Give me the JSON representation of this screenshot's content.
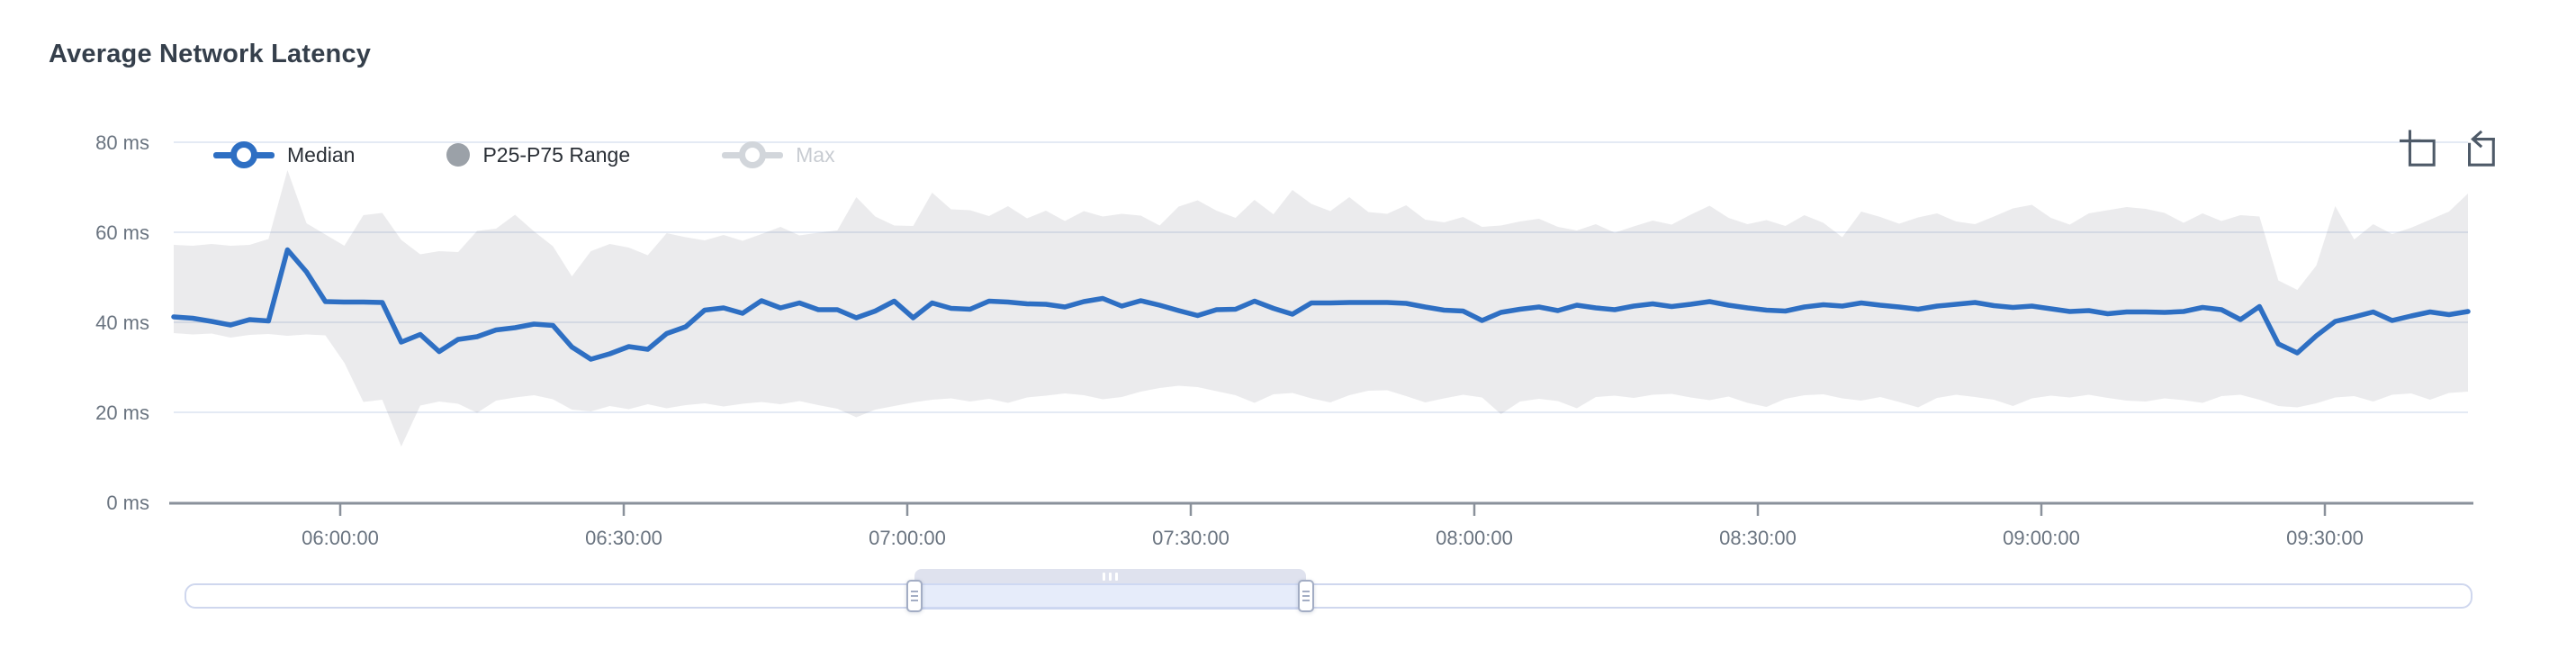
{
  "page": {
    "title": "Average Network Latency"
  },
  "legend": {
    "items": [
      {
        "label": "Median",
        "marker": "line-circle",
        "selected": true,
        "color": "#2e6fc3"
      },
      {
        "label": "P25-P75 Range",
        "marker": "filled-circle",
        "selected": true,
        "color": "#9ba1a8"
      },
      {
        "label": "Max",
        "marker": "line-circle",
        "selected": false,
        "color": "#d2d6db"
      }
    ]
  },
  "toolbox": {
    "icons": [
      {
        "name": "zoom-select"
      },
      {
        "name": "zoom-reset"
      }
    ]
  },
  "colors": {
    "median_line": "#2e6fc3",
    "band_fill": "rgba(128,133,141,0.16)",
    "grid_line": "#e4eaf4",
    "axis_line": "#8a919b",
    "axis_label": "#6a7480",
    "title": "#353f4b",
    "disabled_legend": "#d2d6db",
    "slider_window": "rgba(205,217,246,0.50)"
  },
  "slider": {
    "window_start_pct": 31.9,
    "window_end_pct": 49.0
  },
  "chart_data": {
    "type": "line",
    "title": "Average Network Latency",
    "xlabel": "",
    "ylabel": "",
    "ylim": [
      0,
      80
    ],
    "grid": true,
    "legend_position": "top-left",
    "x_start": "05:42:00",
    "x_end": "09:44:00",
    "x_interval_seconds": 120,
    "x_tick_labels": [
      "06:00:00",
      "06:30:00",
      "07:00:00",
      "07:30:00",
      "08:00:00",
      "08:30:00",
      "09:00:00",
      "09:30:00"
    ],
    "y_tick_labels": [
      "80 ms",
      "60 ms",
      "40 ms",
      "20 ms",
      "0 ms"
    ],
    "y_unit": "ms",
    "series": [
      {
        "name": "Median",
        "type": "line",
        "values": [
          41.2,
          40.9,
          40.2,
          39.4,
          40.6,
          40.3,
          56.1,
          51.2,
          44.6,
          44.5,
          44.5,
          44.4,
          35.6,
          37.3,
          33.5,
          36.2,
          36.8,
          38.3,
          38.8,
          39.6,
          39.3,
          34.5,
          31.8,
          33.0,
          34.6,
          34.0,
          37.5,
          39.0,
          42.7,
          43.2,
          42.0,
          44.8,
          43.2,
          44.3,
          42.8,
          42.8,
          41.0,
          42.5,
          44.7,
          41.0,
          44.3,
          43.1,
          42.9,
          44.7,
          44.5,
          44.1,
          44.0,
          43.4,
          44.6,
          45.3,
          43.6,
          44.8,
          43.8,
          42.6,
          41.5,
          42.8,
          42.9,
          44.7,
          43.1,
          41.8,
          44.3,
          44.3,
          44.4,
          44.4,
          44.4,
          44.2,
          43.4,
          42.7,
          42.5,
          40.4,
          42.2,
          42.9,
          43.4,
          42.6,
          43.8,
          43.2,
          42.8,
          43.6,
          44.1,
          43.5,
          44.0,
          44.6,
          43.8,
          43.2,
          42.7,
          42.5,
          43.4,
          43.9,
          43.6,
          44.3,
          43.8,
          43.4,
          42.9,
          43.6,
          44.0,
          44.4,
          43.7,
          43.3,
          43.6,
          43.0,
          42.4,
          42.6,
          41.9,
          42.3,
          42.3,
          42.2,
          42.4,
          43.3,
          42.8,
          40.6,
          43.5,
          35.2,
          33.2,
          37.0,
          40.2,
          41.2,
          42.3,
          40.4,
          41.4,
          42.3,
          41.7,
          42.4
        ]
      },
      {
        "name": "P25",
        "type": "band-lower",
        "values": [
          37.6,
          37.3,
          37.5,
          36.6,
          37.2,
          37.4,
          37.0,
          37.3,
          37.1,
          31.0,
          22.3,
          22.8,
          12.4,
          21.5,
          22.4,
          21.9,
          19.9,
          22.6,
          23.3,
          23.8,
          22.9,
          20.6,
          20.2,
          21.4,
          20.7,
          21.8,
          20.9,
          21.6,
          22.0,
          21.3,
          21.9,
          22.3,
          21.8,
          22.5,
          21.6,
          20.8,
          18.9,
          20.6,
          21.4,
          22.2,
          22.8,
          23.1,
          22.4,
          23.0,
          22.1,
          23.3,
          23.7,
          24.2,
          23.8,
          22.9,
          23.4,
          24.6,
          25.4,
          25.9,
          25.6,
          24.7,
          23.8,
          22.1,
          24.0,
          24.3,
          23.1,
          22.2,
          23.8,
          24.8,
          24.9,
          23.6,
          22.2,
          23.1,
          23.9,
          23.3,
          19.6,
          22.4,
          23.0,
          22.5,
          20.9,
          23.4,
          23.7,
          23.2,
          23.9,
          24.1,
          23.3,
          22.7,
          23.5,
          22.1,
          21.2,
          23.0,
          23.8,
          24.0,
          23.1,
          22.6,
          23.4,
          22.3,
          21.1,
          23.2,
          23.9,
          23.4,
          22.8,
          21.4,
          23.1,
          23.7,
          23.3,
          23.9,
          23.2,
          22.6,
          22.4,
          23.1,
          22.7,
          22.1,
          23.6,
          23.9,
          22.8,
          21.4,
          21.1,
          22.0,
          23.3,
          23.6,
          22.4,
          23.9,
          24.2,
          22.8,
          24.3,
          24.6
        ]
      },
      {
        "name": "P75",
        "type": "band-upper",
        "values": [
          57.2,
          57.0,
          57.4,
          57.0,
          57.2,
          58.5,
          73.8,
          62.0,
          59.5,
          57.0,
          63.8,
          64.3,
          58.3,
          55.1,
          55.8,
          55.6,
          60.3,
          60.8,
          63.9,
          60.2,
          56.9,
          50.2,
          55.8,
          57.4,
          56.6,
          54.9,
          59.8,
          58.9,
          58.2,
          59.4,
          58.1,
          59.6,
          61.2,
          59.3,
          59.9,
          60.4,
          67.8,
          63.5,
          61.5,
          61.4,
          68.8,
          65.1,
          64.9,
          63.6,
          65.8,
          63.1,
          64.8,
          62.5,
          64.7,
          63.5,
          64.1,
          63.7,
          61.5,
          65.7,
          67.1,
          64.8,
          63.2,
          67.2,
          64.0,
          69.4,
          66.3,
          64.7,
          67.8,
          64.5,
          64.1,
          66.0,
          62.8,
          62.2,
          63.4,
          61.2,
          61.5,
          62.4,
          63.0,
          61.2,
          60.4,
          61.8,
          59.9,
          61.3,
          62.6,
          61.7,
          63.9,
          65.9,
          63.2,
          61.8,
          62.7,
          61.4,
          63.8,
          62.1,
          58.9,
          64.6,
          63.4,
          61.9,
          63.3,
          64.2,
          62.4,
          61.8,
          63.5,
          65.3,
          66.1,
          63.2,
          61.7,
          64.2,
          64.9,
          65.6,
          65.2,
          64.3,
          62.1,
          64.2,
          62.5,
          63.8,
          63.5,
          49.3,
          47.2,
          52.6,
          65.8,
          58.4,
          61.8,
          59.6,
          61.0,
          62.8,
          64.6,
          68.6
        ]
      },
      {
        "name": "Max",
        "type": "line",
        "hidden": true,
        "values": []
      }
    ]
  }
}
